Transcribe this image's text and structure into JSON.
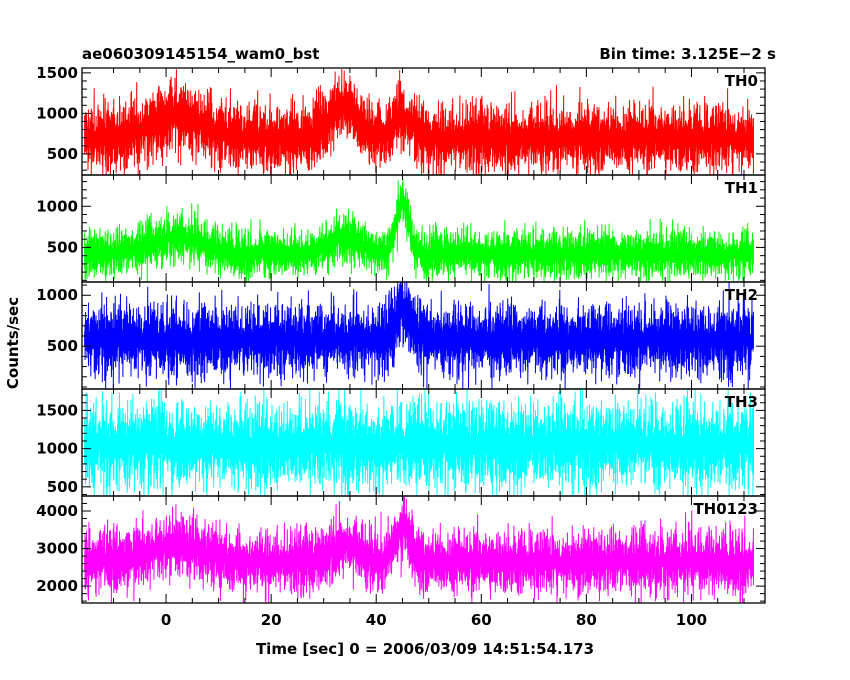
{
  "header": {
    "left_title": "ae060309145154_wam0_bst",
    "right_title": "Bin time: 3.125E−2 s"
  },
  "chart_data": {
    "type": "line",
    "title": "ae060309145154_wam0_bst",
    "subtitle": "Bin time: 3.125E−2 s",
    "xlabel": "Time [sec] 0 = 2006/03/09 14:51:54.173",
    "ylabel": "Counts/sec",
    "xlim": [
      -16,
      114
    ],
    "x_ticks": [
      0,
      20,
      40,
      60,
      80,
      100
    ],
    "x_tick_labels": [
      "0",
      "20",
      "40",
      "60",
      "80",
      "100"
    ],
    "x_range_data": [
      -15.5,
      111.8
    ],
    "bin_time": 0.03125,
    "grid": false,
    "legend": "none",
    "panels": [
      {
        "name": "TH0",
        "color": "#ff0000",
        "ylim": [
          240,
          1560
        ],
        "y_ticks": [
          500,
          1000,
          1500
        ],
        "y_tick_labels": [
          "500",
          "1000",
          "1500"
        ],
        "baseline": 700,
        "noise": 190,
        "events": [
          {
            "t": 2,
            "amp": 260,
            "width": 5
          },
          {
            "t": 34,
            "amp": 380,
            "width": 2.5
          },
          {
            "t": 45,
            "amp": 240,
            "width": 2
          }
        ]
      },
      {
        "name": "TH1",
        "color": "#00ff00",
        "ylim": [
          80,
          1380
        ],
        "y_ticks": [
          500,
          1000
        ],
        "y_tick_labels": [
          "500",
          "1000"
        ],
        "baseline": 420,
        "noise": 130,
        "events": [
          {
            "t": 2,
            "amp": 200,
            "width": 5
          },
          {
            "t": 34,
            "amp": 180,
            "width": 3
          },
          {
            "t": 45,
            "amp": 650,
            "width": 1.2
          }
        ]
      },
      {
        "name": "TH2",
        "color": "#0000ff",
        "ylim": [
          80,
          1130
        ],
        "y_ticks": [
          500,
          1000
        ],
        "y_tick_labels": [
          "500",
          "1000"
        ],
        "baseline": 560,
        "noise": 160,
        "events": [
          {
            "t": 45,
            "amp": 300,
            "width": 1.5
          }
        ]
      },
      {
        "name": "TH3",
        "color": "#00ffff",
        "ylim": [
          380,
          1780
        ],
        "y_ticks": [
          500,
          1000,
          1500
        ],
        "y_tick_labels": [
          "500",
          "1000",
          "1500"
        ],
        "baseline": 1050,
        "noise": 250,
        "events": []
      },
      {
        "name": "TH0123",
        "color": "#ff00ff",
        "ylim": [
          1550,
          4400
        ],
        "y_ticks": [
          2000,
          3000,
          4000
        ],
        "y_tick_labels": [
          "2000",
          "3000",
          "4000"
        ],
        "baseline": 2650,
        "noise": 380,
        "events": [
          {
            "t": 2,
            "amp": 450,
            "width": 5
          },
          {
            "t": 34,
            "amp": 500,
            "width": 2.5
          },
          {
            "t": 45,
            "amp": 900,
            "width": 1.5
          }
        ]
      }
    ]
  }
}
